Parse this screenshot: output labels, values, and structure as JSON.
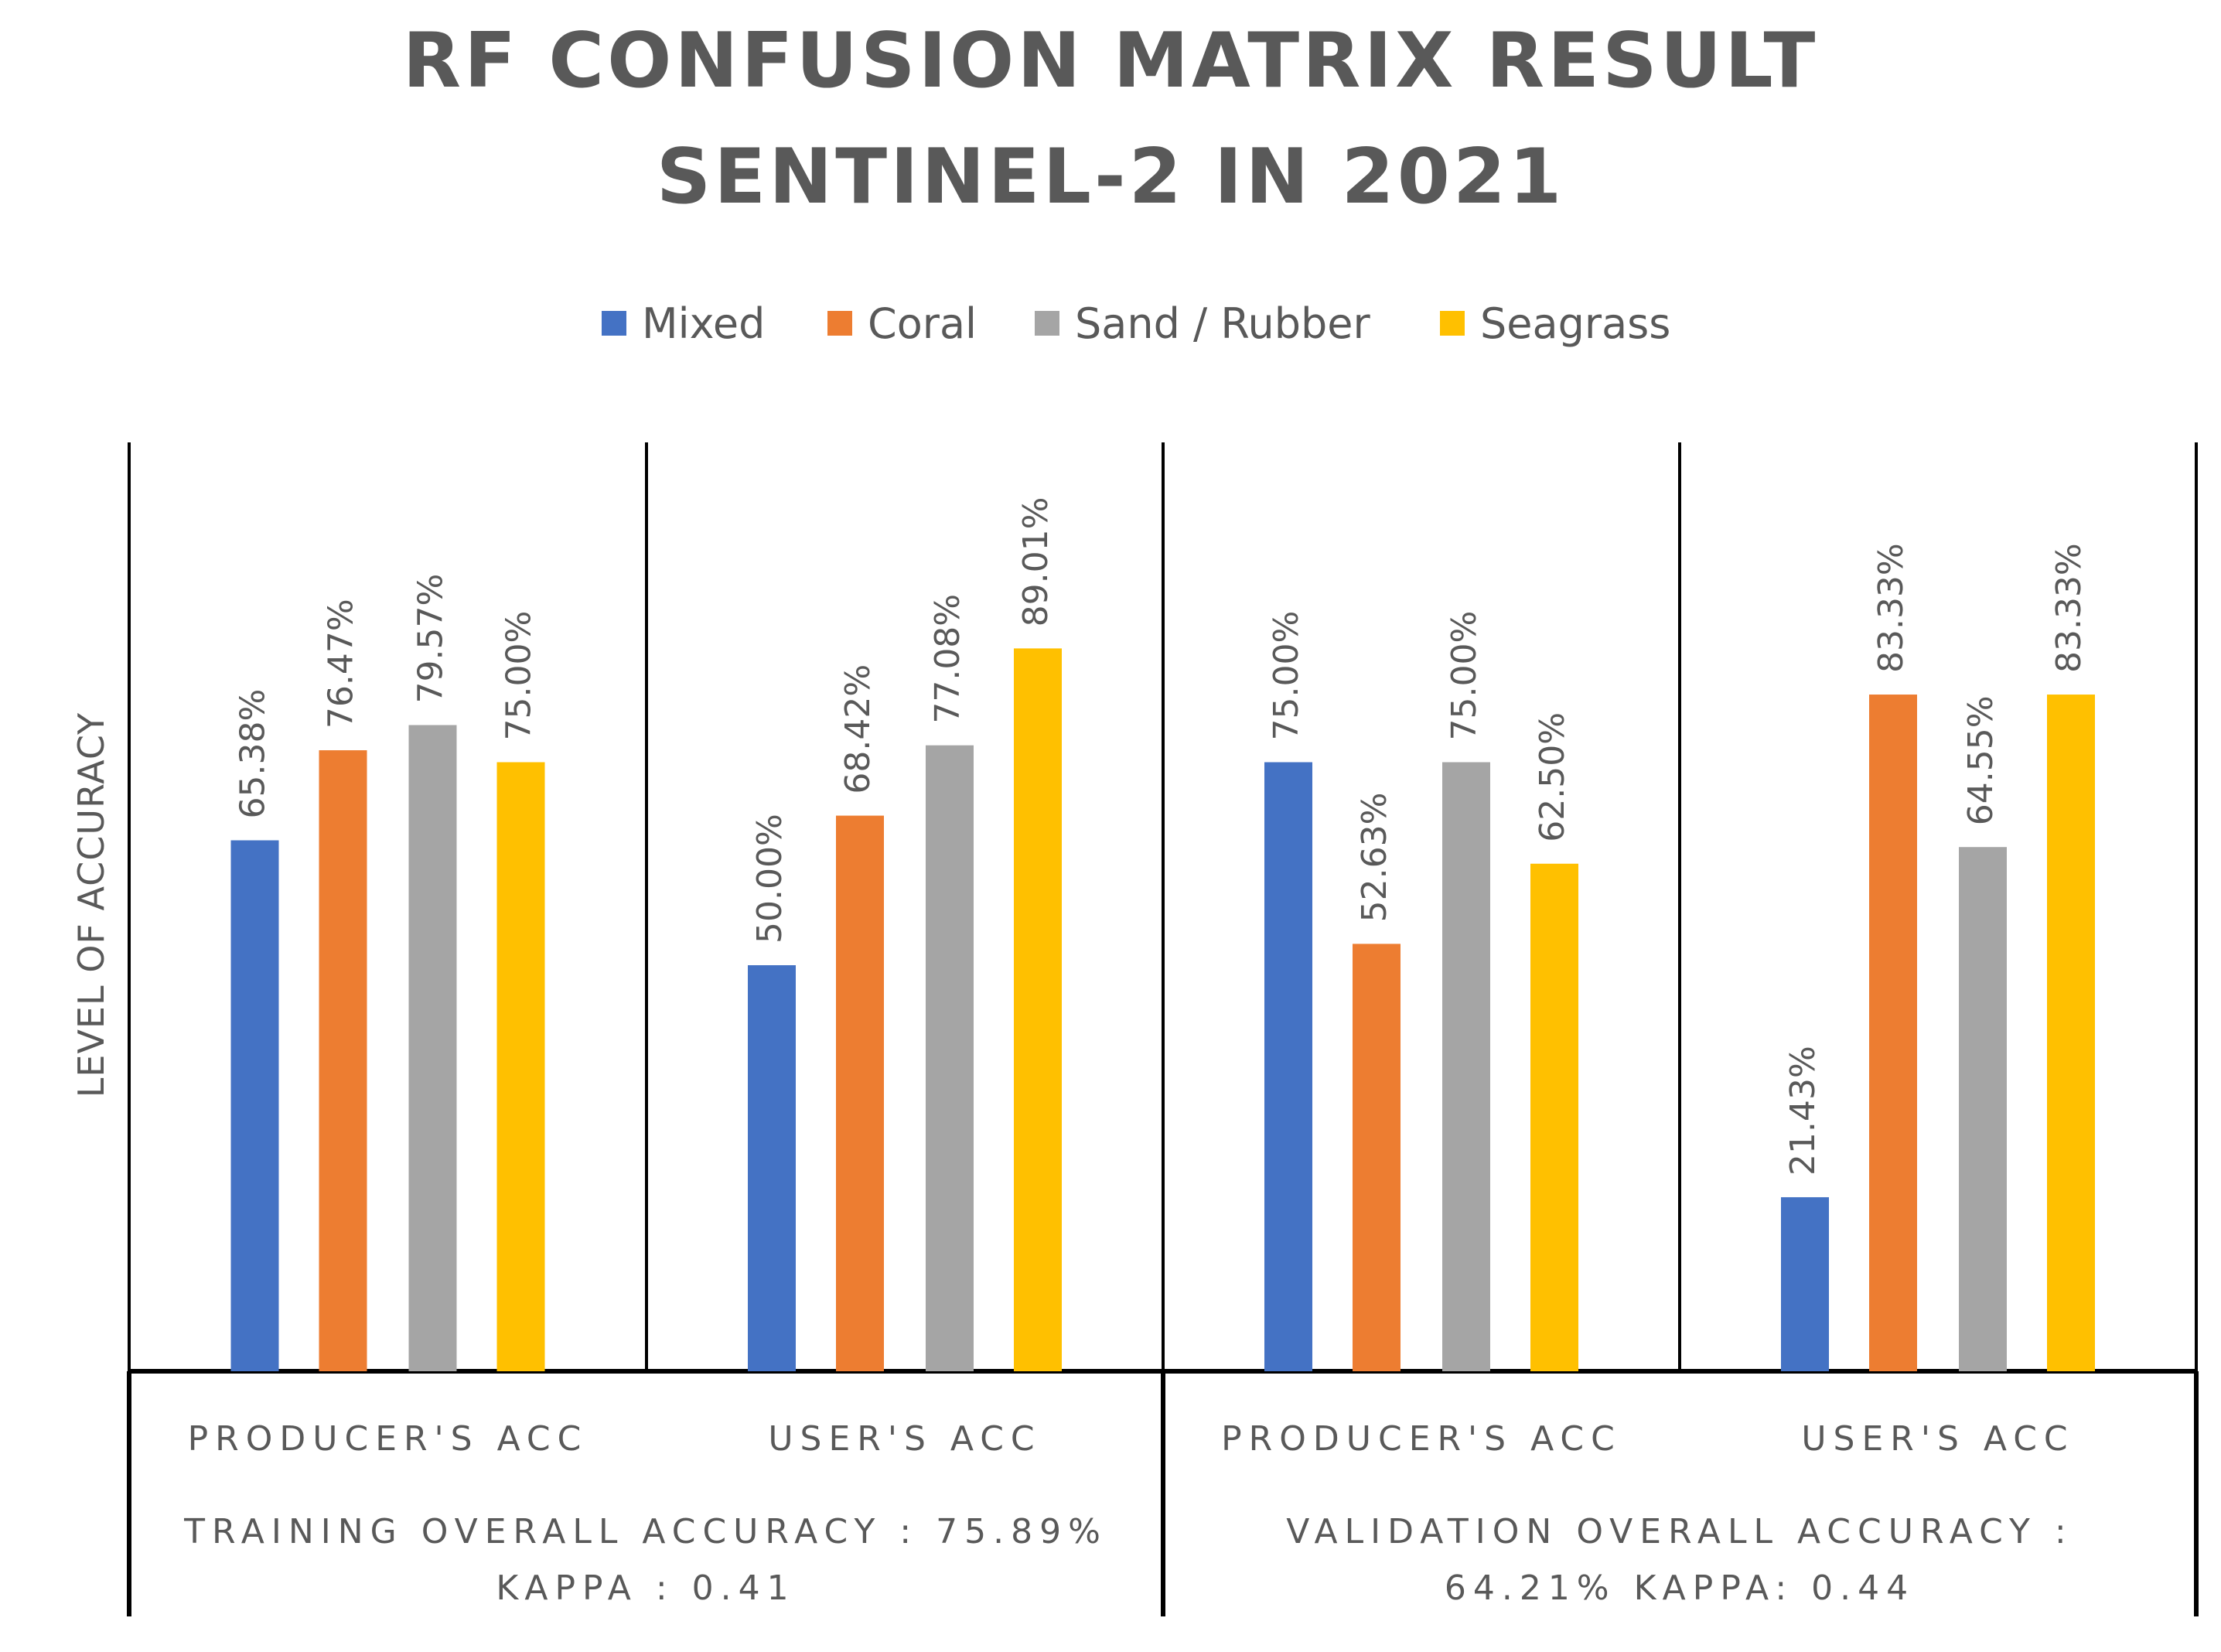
{
  "chart_data": {
    "type": "bar",
    "title_lines": [
      "RF CONFUSION MATRIX RESULT",
      "SENTINEL-2 IN 2021"
    ],
    "ylabel": "LEVEL OF ACCURACY",
    "xlabel": "",
    "ylim": [
      0,
      100
    ],
    "grid": false,
    "legend_position": "top",
    "categories": [
      "PRODUCER'S ACC",
      "USER'S ACC",
      "PRODUCER'S ACC",
      "USER'S ACC"
    ],
    "groups": [
      {
        "label_lines": [
          "TRAINING OVERALL ACCURACY : 75.89%",
          "KAPPA : 0.41"
        ],
        "category_indices": [
          0,
          1
        ]
      },
      {
        "label_lines": [
          "VALIDATION OVERALL ACCURACY :",
          "64.21% KAPPA: 0.44"
        ],
        "category_indices": [
          2,
          3
        ]
      }
    ],
    "series": [
      {
        "name": "Mixed",
        "color": "#4472C4",
        "values": [
          65.38,
          50.0,
          75.0,
          21.43
        ],
        "labels": [
          "65.38%",
          "50.00%",
          "75.00%",
          "21.43%"
        ]
      },
      {
        "name": "Coral",
        "color": "#ED7D31",
        "values": [
          76.47,
          68.42,
          52.63,
          83.33
        ],
        "labels": [
          "76.47%",
          "68.42%",
          "52.63%",
          "83.33%"
        ]
      },
      {
        "name": "Sand / Rubber",
        "color": "#A5A5A5",
        "values": [
          79.57,
          77.08,
          75.0,
          64.55
        ],
        "labels": [
          "79.57%",
          "77.08%",
          "75.00%",
          "64.55%"
        ]
      },
      {
        "name": "Seagrass",
        "color": "#FFC000",
        "values": [
          75.0,
          89.01,
          62.5,
          83.33
        ],
        "labels": [
          "75.00%",
          "89.01%",
          "62.50%",
          "83.33%"
        ]
      }
    ]
  }
}
